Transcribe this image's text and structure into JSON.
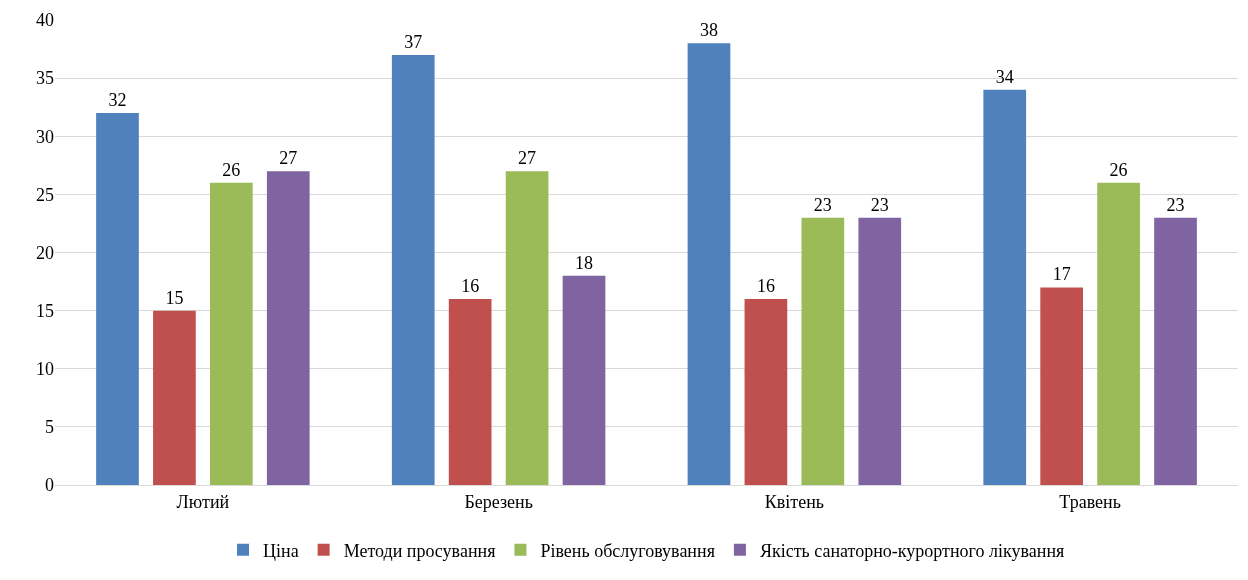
{
  "chart_data": {
    "type": "bar",
    "categories": [
      "Лютий",
      "Березень",
      "Квітень",
      "Травень"
    ],
    "series": [
      {
        "name": "Ціна",
        "color": "#4f81bd",
        "values": [
          32,
          37,
          38,
          34
        ]
      },
      {
        "name": "Методи просування",
        "color": "#c0504d",
        "values": [
          15,
          16,
          16,
          17
        ]
      },
      {
        "name": "Рівень обслуговування",
        "color": "#9bbb59",
        "values": [
          26,
          27,
          23,
          26
        ]
      },
      {
        "name": "Якість санаторно-курортного лікування",
        "color": "#8064a2",
        "values": [
          27,
          18,
          23,
          23
        ]
      }
    ],
    "ylim": [
      0,
      40
    ],
    "yticks": [
      0,
      5,
      10,
      15,
      20,
      25,
      30,
      35,
      40
    ],
    "grid": "y",
    "legend": "bottom",
    "data_labels": true
  }
}
